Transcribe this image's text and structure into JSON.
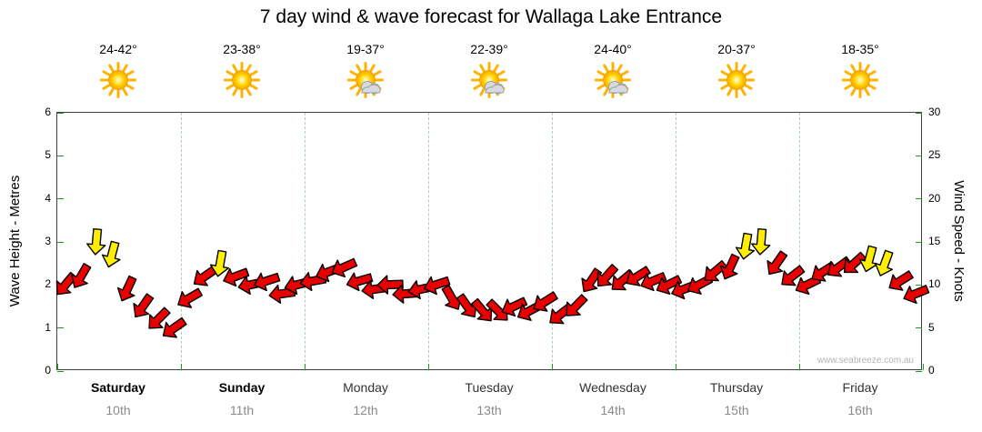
{
  "title": "7 day wind & wave forecast for Wallaga Lake Entrance",
  "watermark": "www.seabreeze.com.au",
  "axes": {
    "left_label": "Wave Height - Metres",
    "right_label": "Wind Speed - Knots",
    "left_ticks": [
      0,
      1,
      2,
      3,
      4,
      5,
      6
    ],
    "right_ticks": [
      0,
      5,
      10,
      15,
      20,
      25,
      30
    ]
  },
  "colors": {
    "arrow_red": "#e60000",
    "arrow_yellow": "#ffee00",
    "arrow_outline": "#000000",
    "tick_green": "#15a015",
    "date_gray": "#8a8a8a"
  },
  "days": [
    {
      "name": "Saturday",
      "date": "10th",
      "temp": "24-42°",
      "icon": "sunny",
      "weekend": true
    },
    {
      "name": "Sunday",
      "date": "11th",
      "temp": "23-38°",
      "icon": "sunny",
      "weekend": true
    },
    {
      "name": "Monday",
      "date": "12th",
      "temp": "19-37°",
      "icon": "partly-cloudy",
      "weekend": false
    },
    {
      "name": "Tuesday",
      "date": "13th",
      "temp": "22-39°",
      "icon": "partly-cloudy",
      "weekend": false
    },
    {
      "name": "Wednesday",
      "date": "14th",
      "temp": "24-40°",
      "icon": "partly-cloudy",
      "weekend": false
    },
    {
      "name": "Thursday",
      "date": "15th",
      "temp": "20-37°",
      "icon": "sunny",
      "weekend": false
    },
    {
      "name": "Friday",
      "date": "16th",
      "temp": "18-35°",
      "icon": "sunny",
      "weekend": false
    }
  ],
  "chart_data": {
    "type": "wind-arrow-series",
    "x_unit": "days_from_start",
    "x_range": [
      0,
      7
    ],
    "right_axis": {
      "label": "Wind Speed - Knots",
      "range": [
        0,
        30
      ]
    },
    "left_axis": {
      "label": "Wave Height - Metres",
      "range": [
        0,
        6
      ]
    },
    "point_format": [
      "day_x",
      "knots",
      "color",
      "direction_deg"
    ],
    "points": [
      [
        0.063,
        10,
        "r",
        220
      ],
      [
        0.188,
        11,
        "r",
        210
      ],
      [
        0.313,
        15,
        "y",
        185
      ],
      [
        0.438,
        13.5,
        "y",
        195
      ],
      [
        0.563,
        9.5,
        "r",
        205
      ],
      [
        0.688,
        7.5,
        "r",
        215
      ],
      [
        0.813,
        6,
        "r",
        225
      ],
      [
        0.938,
        5,
        "r",
        235
      ],
      [
        1.063,
        8.5,
        "r",
        240
      ],
      [
        1.188,
        11,
        "r",
        235
      ],
      [
        1.313,
        12.5,
        "y",
        190
      ],
      [
        1.438,
        11,
        "r",
        250
      ],
      [
        1.563,
        10,
        "r",
        258
      ],
      [
        1.688,
        10.5,
        "r",
        252
      ],
      [
        1.813,
        9,
        "r",
        262
      ],
      [
        1.938,
        10,
        "r",
        256
      ],
      [
        2.063,
        10.5,
        "r",
        260
      ],
      [
        2.188,
        11.5,
        "r",
        250
      ],
      [
        2.313,
        12,
        "r",
        246
      ],
      [
        2.438,
        10.5,
        "r",
        254
      ],
      [
        2.563,
        9.5,
        "r",
        262
      ],
      [
        2.688,
        10,
        "r",
        268
      ],
      [
        2.813,
        9,
        "r",
        266
      ],
      [
        2.938,
        9.5,
        "r",
        258
      ],
      [
        3.063,
        10,
        "r",
        252
      ],
      [
        3.188,
        8.5,
        "r",
        150
      ],
      [
        3.313,
        7.5,
        "r",
        145
      ],
      [
        3.438,
        7,
        "r",
        140
      ],
      [
        3.563,
        7,
        "r",
        135
      ],
      [
        3.688,
        7.5,
        "r",
        245
      ],
      [
        3.813,
        7,
        "r",
        242
      ],
      [
        3.938,
        8,
        "r",
        238
      ],
      [
        4.063,
        6.5,
        "r",
        232
      ],
      [
        4.188,
        7.5,
        "r",
        224
      ],
      [
        4.313,
        10.5,
        "r",
        214
      ],
      [
        4.438,
        11,
        "r",
        222
      ],
      [
        4.563,
        10.5,
        "r",
        230
      ],
      [
        4.688,
        11,
        "r",
        238
      ],
      [
        4.813,
        10.5,
        "r",
        248
      ],
      [
        4.938,
        10,
        "r",
        244
      ],
      [
        5.063,
        9.5,
        "r",
        250
      ],
      [
        5.188,
        10,
        "r",
        242
      ],
      [
        5.313,
        11.5,
        "r",
        230
      ],
      [
        5.438,
        12,
        "r",
        205
      ],
      [
        5.563,
        14.5,
        "y",
        190
      ],
      [
        5.688,
        15,
        "y",
        185
      ],
      [
        5.813,
        12.5,
        "r",
        215
      ],
      [
        5.938,
        11,
        "r",
        232
      ],
      [
        6.063,
        10,
        "r",
        244
      ],
      [
        6.188,
        11.5,
        "r",
        238
      ],
      [
        6.313,
        12,
        "r",
        234
      ],
      [
        6.438,
        12.5,
        "r",
        228
      ],
      [
        6.563,
        13,
        "y",
        195
      ],
      [
        6.688,
        12.5,
        "y",
        200
      ],
      [
        6.813,
        10.5,
        "r",
        238
      ],
      [
        6.938,
        9,
        "r",
        248
      ]
    ]
  }
}
